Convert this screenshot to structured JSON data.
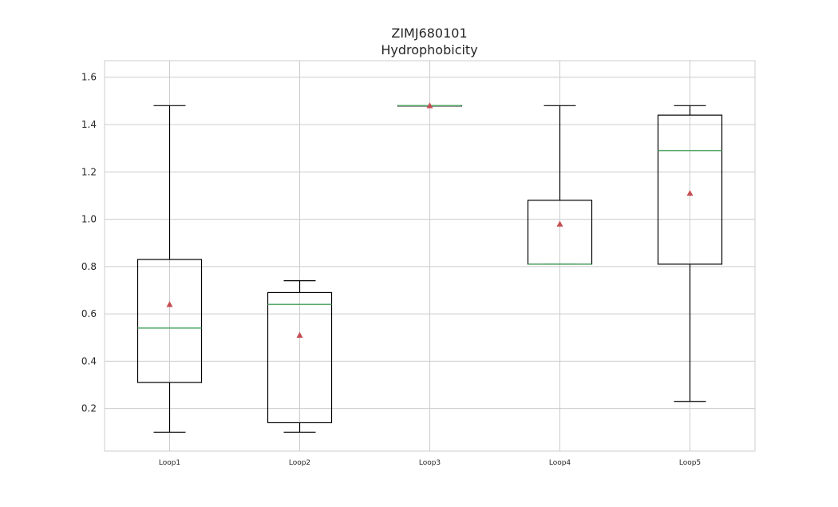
{
  "chart_data": {
    "type": "boxplot",
    "title": "ZIMJ680101",
    "subtitle": "Hydrophobicity",
    "xlabel": "",
    "ylabel": "",
    "ylim": [
      0.02,
      1.67
    ],
    "yticks": [
      0.2,
      0.4,
      0.6,
      0.8,
      1.0,
      1.2,
      1.4,
      1.6
    ],
    "ytick_labels": [
      "0.2",
      "0.4",
      "0.6",
      "0.8",
      "1.0",
      "1.2",
      "1.4",
      "1.6"
    ],
    "grid": true,
    "categories": [
      "Loop1",
      "Loop2",
      "Loop3",
      "Loop4",
      "Loop5"
    ],
    "boxes": [
      {
        "whisker_low": 0.1,
        "q1": 0.31,
        "median": 0.54,
        "q3": 0.83,
        "whisker_high": 1.48,
        "mean": 0.64
      },
      {
        "whisker_low": 0.1,
        "q1": 0.14,
        "median": 0.64,
        "q3": 0.69,
        "whisker_high": 0.74,
        "mean": 0.51
      },
      {
        "whisker_low": 1.48,
        "q1": 1.48,
        "median": 1.48,
        "q3": 1.48,
        "whisker_high": 1.48,
        "mean": 1.48
      },
      {
        "whisker_low": 0.81,
        "q1": 0.81,
        "median": 0.81,
        "q3": 1.08,
        "whisker_high": 1.48,
        "mean": 0.98
      },
      {
        "whisker_low": 0.23,
        "q1": 0.81,
        "median": 1.29,
        "q3": 1.44,
        "whisker_high": 1.48,
        "mean": 1.11
      }
    ],
    "colors": {
      "box": "#000000",
      "median": "#55a868",
      "mean": "#c44e52",
      "grid": "#cccccc",
      "frame": "#cccccc"
    }
  }
}
